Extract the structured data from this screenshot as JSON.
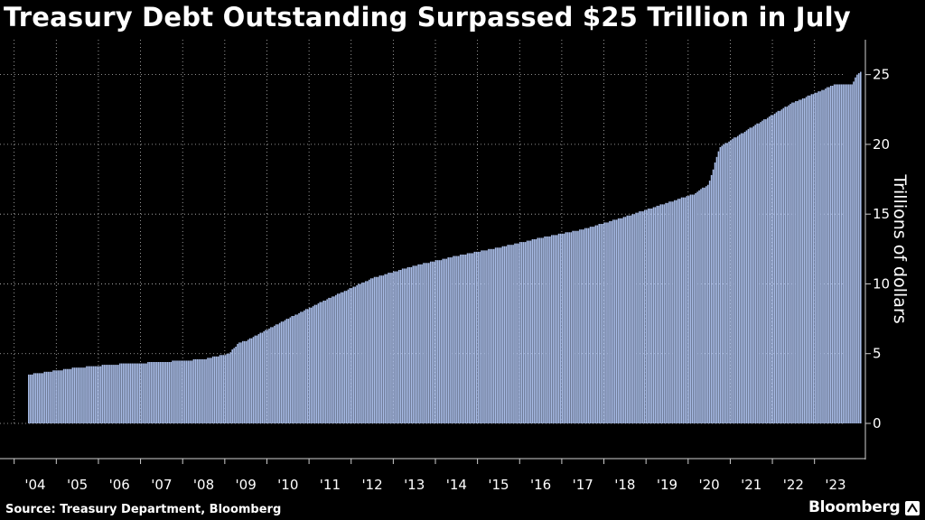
{
  "chart_data": {
    "type": "bar",
    "title": "Treasury Debt Outstanding Surpassed $25 Trillion in July",
    "ylabel": "Trillions of dollars",
    "xlabel": "",
    "ylim": [
      0,
      27.5
    ],
    "yticks": [
      0,
      5,
      10,
      15,
      20,
      25
    ],
    "x_tick_labels": [
      "'04",
      "'05",
      "'06",
      "'07",
      "'08",
      "'09",
      "'10",
      "'11",
      "'12",
      "'13",
      "'14",
      "'15",
      "'16",
      "'17",
      "'18",
      "'19",
      "'20",
      "'21",
      "'22",
      "'23"
    ],
    "x_start_year": 2003.85,
    "x_end_year": 2023.6,
    "bar_color": "#a9bde8",
    "series": [
      {
        "name": "Treasury debt outstanding",
        "anchors": [
          {
            "year": 2003.85,
            "value": 3.5
          },
          {
            "year": 2005.0,
            "value": 4.0
          },
          {
            "year": 2006.0,
            "value": 4.25
          },
          {
            "year": 2007.0,
            "value": 4.4
          },
          {
            "year": 2008.0,
            "value": 4.6
          },
          {
            "year": 2008.6,
            "value": 5.0
          },
          {
            "year": 2008.85,
            "value": 5.8
          },
          {
            "year": 2009.0,
            "value": 5.9
          },
          {
            "year": 2010.0,
            "value": 7.5
          },
          {
            "year": 2011.0,
            "value": 9.0
          },
          {
            "year": 2012.0,
            "value": 10.4
          },
          {
            "year": 2013.0,
            "value": 11.3
          },
          {
            "year": 2014.0,
            "value": 12.0
          },
          {
            "year": 2015.0,
            "value": 12.6
          },
          {
            "year": 2016.0,
            "value": 13.3
          },
          {
            "year": 2017.0,
            "value": 13.9
          },
          {
            "year": 2018.0,
            "value": 14.8
          },
          {
            "year": 2019.0,
            "value": 15.8
          },
          {
            "year": 2019.7,
            "value": 16.5
          },
          {
            "year": 2020.0,
            "value": 17.2
          },
          {
            "year": 2020.25,
            "value": 19.8
          },
          {
            "year": 2021.0,
            "value": 21.2
          },
          {
            "year": 2022.0,
            "value": 23.0
          },
          {
            "year": 2023.0,
            "value": 24.3
          },
          {
            "year": 2023.4,
            "value": 24.3
          },
          {
            "year": 2023.5,
            "value": 24.9
          },
          {
            "year": 2023.6,
            "value": 25.2
          }
        ]
      }
    ]
  },
  "footer": {
    "source": "Source: Treasury Department, Bloomberg",
    "brand": "Bloomberg"
  },
  "colors": {
    "background": "#000000",
    "grid": "#bdbdbd",
    "bar": "#a9bde8",
    "text": "#ffffff"
  }
}
